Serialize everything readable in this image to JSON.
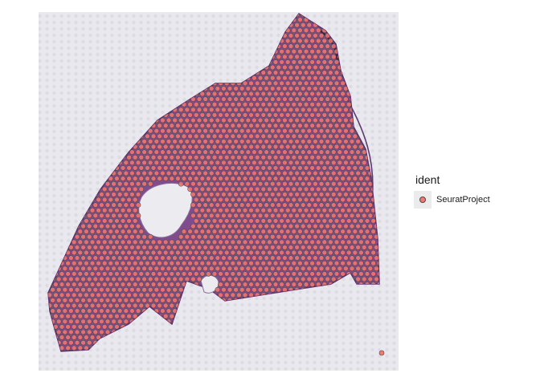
{
  "chart_data": {
    "type": "scatter",
    "title": "",
    "xlabel": "",
    "ylabel": "",
    "background": "tissue histology image (H&E stain)",
    "point_color": "#f8766d",
    "point_border": "#4a4a4a",
    "series": [
      {
        "name": "SeuratProject",
        "color": "#f8766d",
        "description": "spatial transcriptomics spots covering the tissue section"
      }
    ],
    "legend": {
      "title": "ident",
      "position": "right"
    },
    "grid": false
  },
  "legend": {
    "title": "ident",
    "items": [
      {
        "label": "SeuratProject",
        "color": "#f8766d"
      }
    ]
  }
}
